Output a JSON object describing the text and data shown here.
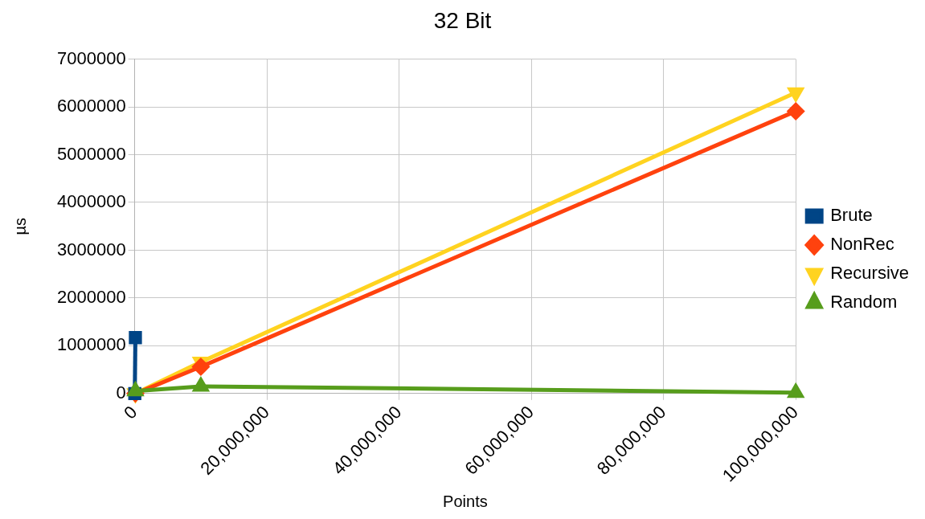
{
  "chart_data": {
    "type": "line",
    "title": "32 Bit",
    "xlabel": "Points",
    "ylabel": "µs",
    "xlim": [
      0,
      100000000
    ],
    "xticks": [
      {
        "value": 0,
        "label": "0"
      },
      {
        "value": 20000000,
        "label": "20,000,000"
      },
      {
        "value": 40000000,
        "label": "40,000,000"
      },
      {
        "value": 60000000,
        "label": "60,000,000"
      },
      {
        "value": 80000000,
        "label": "80,000,000"
      },
      {
        "value": 100000000,
        "label": "100,000,000"
      }
    ],
    "ylim": [
      0,
      7000000
    ],
    "yticks": [
      0,
      1000000,
      2000000,
      3000000,
      4000000,
      5000000,
      6000000,
      7000000
    ],
    "grid": true,
    "legend": "right",
    "series": [
      {
        "name": "Brute",
        "color": "#004586",
        "marker": "square",
        "x": [
          10000,
          100000
        ],
        "values": [
          0,
          1170000
        ]
      },
      {
        "name": "NonRec",
        "color": "#ff420e",
        "marker": "diamond",
        "x": [
          100000,
          10000000,
          100000000
        ],
        "values": [
          0,
          560000,
          5910000
        ]
      },
      {
        "name": "Recursive",
        "color": "#ffd320",
        "marker": "triangle-down",
        "x": [
          100000,
          10000000,
          100000000
        ],
        "values": [
          0,
          660000,
          6300000
        ]
      },
      {
        "name": "Random",
        "color": "#579d1c",
        "marker": "triangle",
        "x": [
          100000,
          10000000,
          100000000
        ],
        "values": [
          50000,
          150000,
          20000
        ]
      }
    ]
  }
}
